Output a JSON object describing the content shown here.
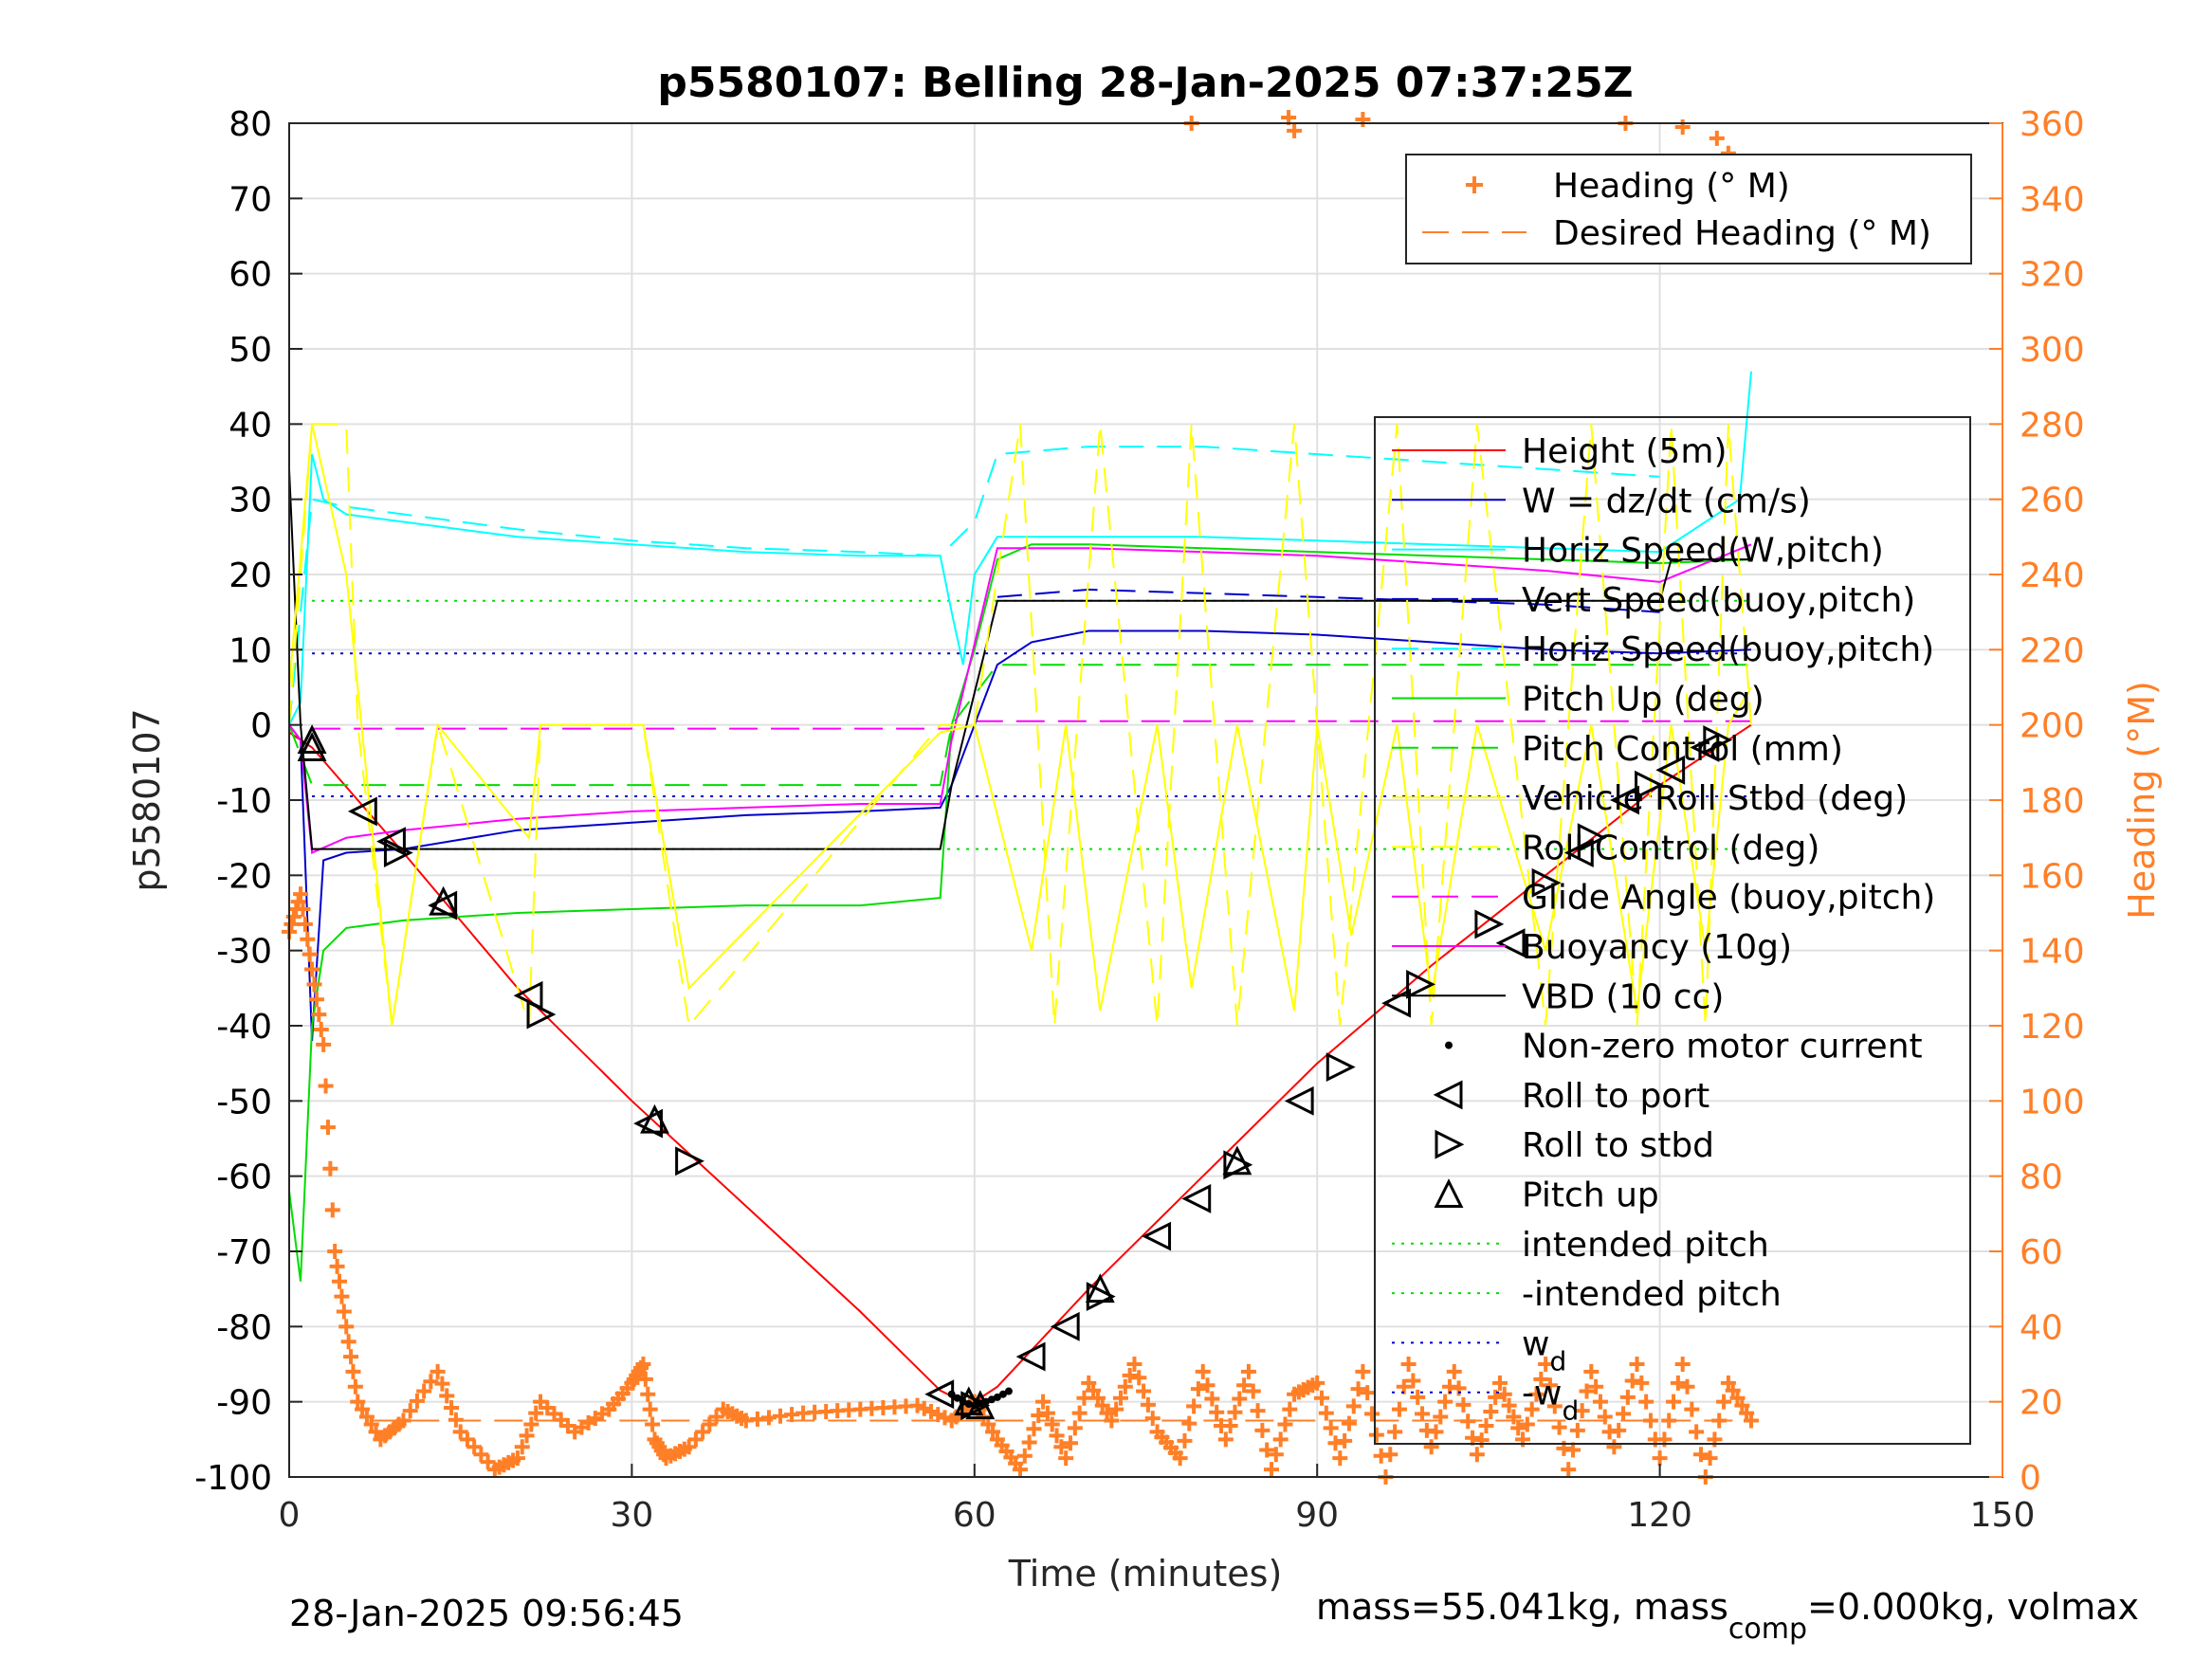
{
  "chart_data": {
    "type": "line",
    "title": "p5580107: Belling 28-Jan-2025 07:37:25Z",
    "xlabel": "Time (minutes)",
    "ylabel": "p5580107",
    "ylabel_right": "Heading (°M)",
    "xlim": [
      0,
      150
    ],
    "ylim": [
      -100,
      80
    ],
    "ylim_right": [
      0,
      360
    ],
    "xticks": [
      "0",
      "30",
      "60",
      "90",
      "120",
      "150"
    ],
    "yticks": [
      "-100",
      "-90",
      "-80",
      "-70",
      "-60",
      "-50",
      "-40",
      "-30",
      "-20",
      "-10",
      "0",
      "10",
      "20",
      "30",
      "40",
      "50",
      "60",
      "70",
      "80"
    ],
    "yticks_right": [
      "0",
      "20",
      "40",
      "60",
      "80",
      "100",
      "120",
      "140",
      "160",
      "180",
      "200",
      "220",
      "240",
      "260",
      "280",
      "300",
      "320",
      "340",
      "360"
    ],
    "grid": true,
    "colors": {
      "heading": "#ff7f27",
      "height": "#ff0000",
      "w": "#0000cc",
      "horiz_speed": "#00ffff",
      "pitch": "#00dd00",
      "roll": "#ffff00",
      "glide": "#ff00ff",
      "vbd": "#000000"
    },
    "footer_left": "28-Jan-2025 09:56:45",
    "footer_right_prefix": "mass=55.041kg, mass",
    "footer_right_sub": "comp",
    "footer_right_suffix": "=0.000kg, volmax",
    "legend_heading": [
      {
        "label": "Heading (° M)",
        "style": "plus",
        "color": "#ff7f27"
      },
      {
        "label": "Desired Heading (° M)",
        "style": "dash",
        "color": "#ff7f27"
      }
    ],
    "legend_main": [
      {
        "label": "Height (5m)",
        "style": "solid",
        "color": "#ff0000"
      },
      {
        "label": "W = dz/dt (cm/s)",
        "style": "solid",
        "color": "#0000cc"
      },
      {
        "label": "Horiz Speed(W,pitch)",
        "style": "solid",
        "color": "#00ffff"
      },
      {
        "label": "Vert Speed(buoy,pitch)",
        "style": "dash",
        "color": "#0000cc"
      },
      {
        "label": "Horiz Speed(buoy,pitch)",
        "style": "dash",
        "color": "#00ffff"
      },
      {
        "label": "Pitch Up (deg)",
        "style": "solid",
        "color": "#00dd00"
      },
      {
        "label": "Pitch Control (mm)",
        "style": "dash",
        "color": "#00dd00"
      },
      {
        "label": "Vehicle Roll Stbd (deg)",
        "style": "solid",
        "color": "#ffff00"
      },
      {
        "label": "Roll Control (deg)",
        "style": "dash",
        "color": "#ffff00"
      },
      {
        "label": "Glide Angle (buoy,pitch)",
        "style": "dash",
        "color": "#ff00ff"
      },
      {
        "label": "Buoyancy (10g)",
        "style": "solid",
        "color": "#ff00ff"
      },
      {
        "label": "VBD (10 cc)",
        "style": "solid",
        "color": "#000000"
      },
      {
        "label": "Non-zero motor current",
        "style": "dot",
        "color": "#000000"
      },
      {
        "label": "Roll to port",
        "style": "tri-left",
        "color": "#000000"
      },
      {
        "label": "Roll to stbd",
        "style": "tri-right",
        "color": "#000000"
      },
      {
        "label": "Pitch up",
        "style": "tri-up",
        "color": "#000000"
      },
      {
        "label": "intended pitch",
        "style": "dotted",
        "color": "#00dd00"
      },
      {
        "label": "-intended pitch",
        "style": "dotted",
        "color": "#00dd00"
      },
      {
        "label": "w",
        "sub": "d",
        "style": "dotted",
        "color": "#0000cc"
      },
      {
        "label": "-w",
        "sub": "d",
        "style": "dotted",
        "color": "#0000cc"
      }
    ],
    "reference_lines": {
      "intended_pitch": 16.5,
      "neg_intended_pitch": -16.5,
      "wd": 9.5,
      "neg_wd": -9.5,
      "glide_angle_dive": -0.5,
      "glide_angle_climb": 0.5,
      "desired_heading_deg": 15
    },
    "series": [
      {
        "name": "Height (5m)",
        "x": [
          0,
          1,
          2,
          10,
          20,
          30,
          40,
          50,
          57,
          59,
          60,
          62,
          70,
          80,
          90,
          100,
          110,
          120,
          128
        ],
        "y": [
          -1,
          -2,
          -3,
          -17,
          -35,
          -50,
          -64,
          -78,
          -88.5,
          -90,
          -90,
          -88,
          -75,
          -60,
          -45,
          -32,
          -20,
          -8,
          0
        ]
      },
      {
        "name": "W = dz/dt (cm/s)",
        "x": [
          0,
          1,
          2,
          3,
          5,
          10,
          20,
          30,
          40,
          50,
          57,
          58,
          60,
          62,
          65,
          70,
          80,
          90,
          100,
          110,
          120,
          128
        ],
        "y": [
          0,
          -2,
          -42,
          -18,
          -17,
          -16.5,
          -14,
          -13,
          -12,
          -11.5,
          -11,
          -8,
          0,
          8,
          11,
          12.5,
          12.5,
          12,
          11,
          10,
          9.5,
          10
        ]
      },
      {
        "name": "Horiz Speed(W,pitch)",
        "x": [
          0,
          1,
          2,
          3,
          5,
          10,
          20,
          30,
          40,
          50,
          57,
          58,
          59,
          60,
          62,
          65,
          70,
          80,
          90,
          100,
          110,
          120,
          127,
          128
        ],
        "y": [
          0,
          3,
          36,
          30,
          28,
          27,
          25,
          24,
          23,
          22.5,
          22.5,
          15,
          8,
          20,
          25,
          25,
          25,
          25,
          24.5,
          24,
          23.5,
          23,
          30,
          47
        ]
      },
      {
        "name": "Vert Speed(buoy,pitch)",
        "x": [
          62,
          70,
          80,
          90,
          100,
          110,
          120
        ],
        "y": [
          17,
          18,
          17.5,
          17,
          16.5,
          16,
          15
        ]
      },
      {
        "name": "Horiz Speed(buoy,pitch)",
        "x": [
          0,
          2,
          5,
          10,
          20,
          30,
          40,
          50,
          57,
          60,
          62,
          70,
          80,
          90,
          100,
          110,
          120
        ],
        "y": [
          0,
          30,
          29,
          28,
          26,
          24.5,
          23.5,
          23,
          22.5,
          27,
          36,
          37,
          37,
          36,
          35,
          34,
          33
        ]
      },
      {
        "name": "Pitch Up (deg)",
        "x": [
          0,
          1,
          2,
          3,
          5,
          10,
          20,
          30,
          40,
          50,
          57,
          58,
          60,
          62,
          65,
          70,
          80,
          90,
          100,
          110,
          120,
          128
        ],
        "y": [
          -62,
          -74,
          -40,
          -30,
          -27,
          -26,
          -25,
          -24.5,
          -24,
          -24,
          -23,
          0,
          10,
          22,
          24,
          24,
          23.5,
          23,
          22.5,
          22,
          21.5,
          22
        ]
      },
      {
        "name": "Pitch Control (mm)",
        "x": [
          0,
          2,
          10,
          20,
          30,
          40,
          50,
          57,
          58,
          62,
          70,
          80,
          90,
          100,
          110,
          120,
          128
        ],
        "y": [
          0,
          -8,
          -8,
          -8,
          -8,
          -8,
          -8,
          -8,
          0,
          8,
          8,
          8,
          8,
          8,
          8,
          8,
          8
        ]
      },
      {
        "name": "Buoyancy (10g)",
        "x": [
          0,
          1,
          2,
          5,
          10,
          20,
          30,
          40,
          50,
          57,
          58,
          62,
          70,
          80,
          90,
          100,
          110,
          120,
          128
        ],
        "y": [
          0,
          -2,
          -17,
          -15,
          -14,
          -12.5,
          -11.5,
          -11,
          -10.5,
          -10.5,
          -2,
          23.5,
          23.5,
          23,
          22.5,
          21.5,
          20.5,
          19,
          24
        ]
      },
      {
        "name": "VBD (10 cc)",
        "x": [
          0,
          1,
          2,
          5,
          10,
          20,
          30,
          40,
          50,
          57,
          58,
          62,
          70,
          80,
          90,
          100,
          110,
          120,
          121,
          128
        ],
        "y": [
          34,
          0,
          -16.5,
          -16.5,
          -16.5,
          -16.5,
          -16.5,
          -16.5,
          -16.5,
          -16.5,
          -8,
          16.5,
          16.5,
          16.5,
          16.5,
          16.5,
          16.5,
          16.5,
          22,
          22
        ]
      },
      {
        "name": "Vehicle Roll Stbd (deg)",
        "x": [
          0,
          2,
          5,
          9,
          13,
          21,
          22,
          31,
          35,
          57,
          60,
          65,
          68,
          71,
          76,
          79,
          83,
          88,
          90,
          93,
          97,
          100,
          104,
          110,
          114,
          118,
          121,
          124,
          126,
          128
        ],
        "y": [
          5,
          40,
          20,
          -40,
          0,
          -15,
          0,
          0,
          -35,
          -1,
          0,
          -30,
          0,
          -38,
          0,
          -35,
          0,
          -38,
          0,
          -28,
          0,
          -36,
          0,
          -30,
          0,
          -38,
          0,
          -30,
          0,
          5
        ]
      },
      {
        "name": "Roll Control (deg)",
        "x": [
          0,
          2,
          5,
          6,
          9,
          13,
          21,
          22,
          31,
          35,
          57,
          60,
          64,
          67,
          71,
          76,
          79,
          83,
          88,
          92,
          97,
          100,
          104,
          110,
          114,
          118,
          121,
          124,
          126,
          128
        ],
        "y": [
          0,
          40,
          40,
          0,
          -40,
          0,
          -40,
          0,
          0,
          -40,
          0,
          0,
          40,
          -40,
          40,
          -40,
          40,
          -40,
          40,
          -40,
          40,
          -40,
          40,
          -40,
          40,
          -40,
          40,
          -40,
          40,
          0
        ]
      },
      {
        "name": "Heading (° M)",
        "x": [
          0,
          1,
          2,
          3,
          4,
          5,
          6,
          8,
          10,
          13,
          15,
          18,
          20,
          22,
          25,
          28,
          30,
          31,
          32,
          33,
          35,
          38,
          40,
          45,
          50,
          55,
          58,
          60,
          62,
          64,
          66,
          68,
          70,
          72,
          74,
          76,
          78,
          80,
          82,
          84,
          86,
          88,
          90,
          92,
          94,
          96,
          98,
          100,
          102,
          104,
          106,
          108,
          110,
          112,
          114,
          116,
          118,
          120,
          122,
          124,
          126,
          128
        ],
        "y": [
          145,
          155,
          135,
          115,
          60,
          40,
          20,
          10,
          15,
          28,
          12,
          2,
          5,
          20,
          12,
          18,
          25,
          30,
          10,
          5,
          8,
          18,
          15,
          17,
          18,
          19,
          15,
          20,
          10,
          2,
          20,
          5,
          25,
          15,
          30,
          12,
          5,
          28,
          10,
          28,
          2,
          22,
          25,
          5,
          28,
          0,
          30,
          8,
          28,
          6,
          25,
          10,
          30,
          2,
          28,
          8,
          30,
          5,
          30,
          0,
          25,
          15
        ]
      },
      {
        "name": "Heading wrap (° M)",
        "x": [
          79,
          87.5,
          88,
          94,
          117,
          122,
          125,
          126
        ],
        "y": [
          360,
          362,
          358,
          361,
          360,
          359,
          356,
          352
        ]
      }
    ],
    "markers": {
      "roll_to_port": {
        "x": [
          6.5,
          9,
          13.5,
          21,
          31.5,
          57,
          65,
          68,
          76,
          79.5,
          88.5,
          97,
          107,
          113,
          117,
          121,
          124
        ],
        "y": [
          -11.5,
          -15.5,
          -24,
          -36,
          -53,
          -89,
          -84,
          -80,
          -68,
          -63,
          -50,
          -37,
          -29,
          -17,
          -10,
          -6,
          -3
        ]
      },
      "roll_to_stbd": {
        "x": [
          9.5,
          22,
          35,
          60,
          71,
          83,
          92,
          99,
          105,
          110,
          114,
          119,
          125
        ],
        "y": [
          -17,
          -38.5,
          -58,
          -90.5,
          -76,
          -58.5,
          -45.5,
          -34.5,
          -26.5,
          -21,
          -15,
          -8,
          -2
        ]
      },
      "pitch_up": {
        "x": [
          2,
          2,
          13.5,
          32,
          59.5,
          60.5,
          71,
          83
        ],
        "y": [
          -2,
          -3,
          -23.5,
          -52.5,
          -90,
          -90.5,
          -75,
          -58
        ]
      },
      "motor_current": {
        "x": [
          58,
          58.5,
          59,
          59.5,
          60,
          60.5,
          61,
          61.5,
          62,
          62.5,
          63
        ],
        "y": [
          -89,
          -89.5,
          -90,
          -90.3,
          -90.5,
          -90.2,
          -90,
          -89.7,
          -89.4,
          -89,
          -88.6
        ]
      }
    }
  }
}
